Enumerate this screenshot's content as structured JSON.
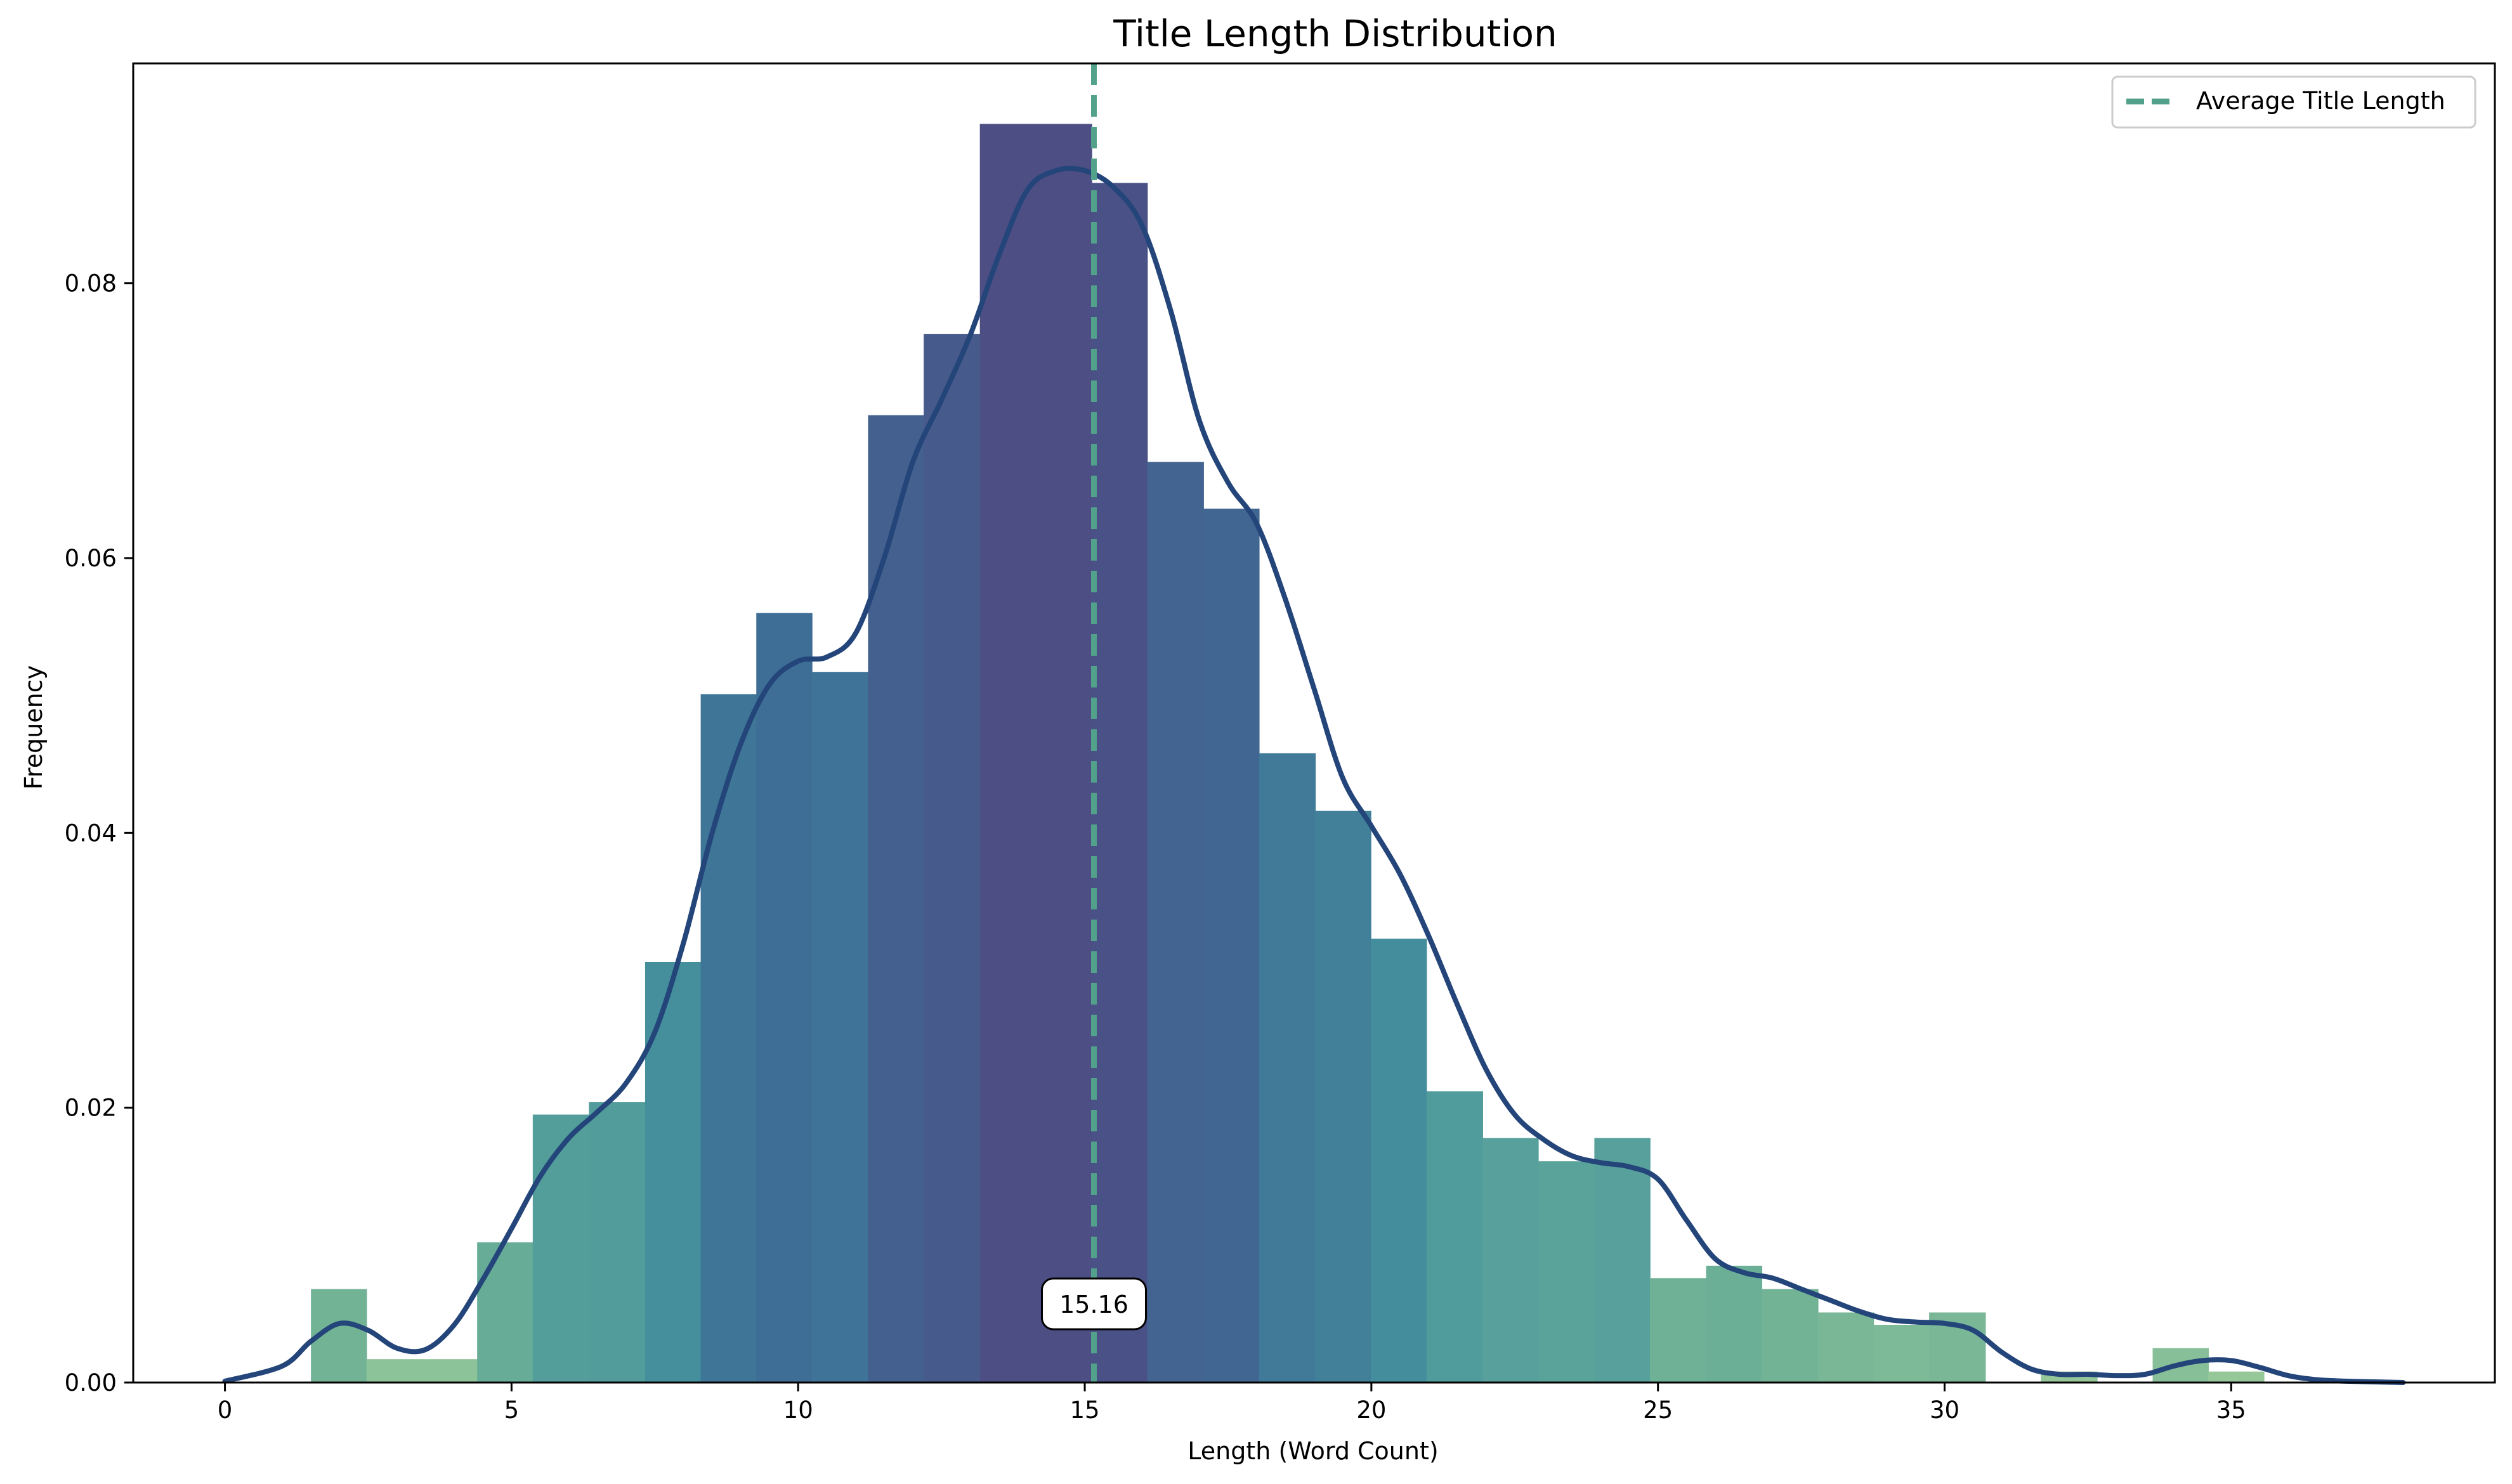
{
  "chart_data": {
    "type": "bar",
    "title": "Title Length Distribution",
    "xlabel": "Length (Word Count)",
    "ylabel": "Frequency",
    "xlim": [
      -1.6,
      39.6
    ],
    "ylim": [
      0,
      0.096
    ],
    "xticks": [
      0,
      5,
      10,
      15,
      20,
      25,
      30,
      35
    ],
    "yticks": [
      0.0,
      0.02,
      0.04,
      0.06,
      0.08
    ],
    "ytick_labels": [
      "0.00",
      "0.02",
      "0.04",
      "0.06",
      "0.08"
    ],
    "bins": [
      {
        "x0": 1.5,
        "x1": 2.47,
        "value": 0.0068
      },
      {
        "x0": 2.47,
        "x1": 3.44,
        "value": 0.0017
      },
      {
        "x0": 3.44,
        "x1": 4.4,
        "value": 0.0017
      },
      {
        "x0": 4.4,
        "x1": 5.37,
        "value": 0.0102
      },
      {
        "x0": 5.37,
        "x1": 6.35,
        "value": 0.0195
      },
      {
        "x0": 6.35,
        "x1": 7.33,
        "value": 0.0204
      },
      {
        "x0": 7.33,
        "x1": 8.3,
        "value": 0.0306
      },
      {
        "x0": 8.3,
        "x1": 9.27,
        "value": 0.0501
      },
      {
        "x0": 9.27,
        "x1": 10.24,
        "value": 0.056
      },
      {
        "x0": 10.24,
        "x1": 11.22,
        "value": 0.0517
      },
      {
        "x0": 11.22,
        "x1": 12.19,
        "value": 0.0704
      },
      {
        "x0": 12.19,
        "x1": 13.17,
        "value": 0.0763
      },
      {
        "x0": 13.17,
        "x1": 14.15,
        "value": 0.0916
      },
      {
        "x0": 14.15,
        "x1": 15.12,
        "value": 0.0916
      },
      {
        "x0": 15.12,
        "x1": 16.09,
        "value": 0.0873
      },
      {
        "x0": 16.09,
        "x1": 17.07,
        "value": 0.067
      },
      {
        "x0": 17.07,
        "x1": 18.04,
        "value": 0.0636
      },
      {
        "x0": 18.04,
        "x1": 19.02,
        "value": 0.0458
      },
      {
        "x0": 19.02,
        "x1": 19.99,
        "value": 0.0416
      },
      {
        "x0": 19.99,
        "x1": 20.96,
        "value": 0.0323
      },
      {
        "x0": 20.96,
        "x1": 21.94,
        "value": 0.0212
      },
      {
        "x0": 21.94,
        "x1": 22.91,
        "value": 0.0178
      },
      {
        "x0": 22.91,
        "x1": 23.89,
        "value": 0.0161
      },
      {
        "x0": 23.89,
        "x1": 24.86,
        "value": 0.0178
      },
      {
        "x0": 24.86,
        "x1": 25.84,
        "value": 0.0076
      },
      {
        "x0": 25.84,
        "x1": 26.81,
        "value": 0.0085
      },
      {
        "x0": 26.81,
        "x1": 27.79,
        "value": 0.0068
      },
      {
        "x0": 27.79,
        "x1": 28.76,
        "value": 0.0051
      },
      {
        "x0": 28.76,
        "x1": 29.73,
        "value": 0.0042
      },
      {
        "x0": 29.73,
        "x1": 30.71,
        "value": 0.0051
      },
      {
        "x0": 30.71,
        "x1": 31.68,
        "value": 0.0
      },
      {
        "x0": 31.68,
        "x1": 32.66,
        "value": 0.0008
      },
      {
        "x0": 32.66,
        "x1": 33.63,
        "value": 0.0
      },
      {
        "x0": 33.63,
        "x1": 34.6,
        "value": 0.0025
      },
      {
        "x0": 34.6,
        "x1": 35.57,
        "value": 0.0008
      }
    ],
    "kde": {
      "x": [
        0,
        1,
        1.5,
        2,
        2.5,
        3,
        3.5,
        4,
        4.5,
        5,
        5.5,
        6,
        6.5,
        7,
        7.5,
        8,
        8.5,
        9,
        9.5,
        10,
        10.5,
        11,
        11.5,
        12,
        12.5,
        13,
        13.5,
        14,
        14.5,
        15,
        15.5,
        16,
        16.5,
        17,
        17.5,
        18,
        18.5,
        19,
        19.5,
        20,
        20.5,
        21,
        21.5,
        22,
        22.5,
        23,
        23.5,
        24,
        24.5,
        25,
        25.5,
        26,
        26.5,
        27,
        27.5,
        28,
        28.5,
        29,
        29.5,
        30,
        30.5,
        31,
        31.5,
        32,
        32.5,
        33,
        33.5,
        34,
        34.5,
        35,
        35.5,
        36,
        36.5,
        37,
        38
      ],
      "y": [
        0.0001,
        0.0012,
        0.003,
        0.0043,
        0.0038,
        0.0025,
        0.0024,
        0.0042,
        0.0075,
        0.0112,
        0.015,
        0.0178,
        0.0197,
        0.0218,
        0.0255,
        0.032,
        0.04,
        0.0465,
        0.0508,
        0.0525,
        0.0528,
        0.0545,
        0.06,
        0.067,
        0.0715,
        0.0762,
        0.082,
        0.0868,
        0.0882,
        0.0882,
        0.087,
        0.0842,
        0.078,
        0.07,
        0.0655,
        0.0625,
        0.057,
        0.0505,
        0.044,
        0.0405,
        0.037,
        0.0325,
        0.0275,
        0.0228,
        0.0195,
        0.0177,
        0.0165,
        0.016,
        0.0157,
        0.0148,
        0.0118,
        0.009,
        0.008,
        0.0076,
        0.0068,
        0.006,
        0.0052,
        0.0046,
        0.0044,
        0.0043,
        0.0038,
        0.0022,
        0.001,
        0.0006,
        0.0006,
        0.0005,
        0.0006,
        0.0012,
        0.0016,
        0.0016,
        0.0011,
        0.0005,
        0.0002,
        0.0001,
        0.0
      ]
    },
    "mean_line": {
      "x": 15.16,
      "label": "Average Title Length",
      "annotation": "15.16"
    },
    "legend": {
      "location": "top-right",
      "entries": [
        "Average Title Length"
      ]
    },
    "grid": false,
    "colors": {
      "kde": "#24457a",
      "mean": "#52a18a",
      "palette": "crest"
    }
  }
}
